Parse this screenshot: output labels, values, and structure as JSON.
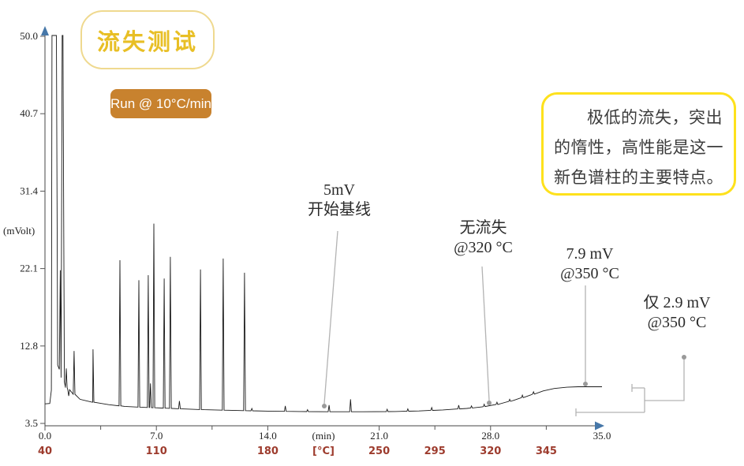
{
  "title": {
    "text": "流失测试"
  },
  "badge": {
    "text": "Run @ 10°C/min"
  },
  "info_box": {
    "text": "极低的流失，突出的惰性，高性能是这一新色谱柱的主要特点。"
  },
  "annotations": [
    {
      "id": "start-baseline",
      "line1": "5mV",
      "line2": "开始基线"
    },
    {
      "id": "no-bleed",
      "line1": "无流失",
      "line2": "@320 °C"
    },
    {
      "id": "bleed-7-9",
      "line1": "7.9 mV",
      "line2": "@350 °C"
    },
    {
      "id": "bleed-2-9",
      "line1": "仅 2.9 mV",
      "line2": "@350 °C"
    }
  ],
  "colors": {
    "title_yellow": "#e8bf25",
    "title_box_border": "#efd98f",
    "callout_border_yellow": "#fee11c",
    "badge_orange": "#c8822e",
    "temp_label_red": "#9d3b2d",
    "axis_arrow_blue": "#4677a8",
    "leader_gray": "#b3b3b3",
    "trace_black": "#1a1a1a"
  },
  "chart_data": {
    "type": "line",
    "subtype": "chromatogram",
    "ylabel": "(mVolt)",
    "xlabel_min": "(min)",
    "xlabel_temp": "[°C]",
    "xlim": [
      0,
      35
    ],
    "ylim": [
      3.5,
      50.0
    ],
    "grid": false,
    "y_ticks": [
      "3.5",
      "12.8",
      "22.1",
      "31.4",
      "40.7",
      "50.0"
    ],
    "x_major_ticks": [
      {
        "t": 0,
        "label": "0.0"
      },
      {
        "t": 7,
        "label": "7.0"
      },
      {
        "t": 14,
        "label": "14.0"
      },
      {
        "t": 21,
        "label": "21.0"
      },
      {
        "t": 28,
        "label": "28.0"
      },
      {
        "t": 35,
        "label": "35.0"
      }
    ],
    "x_minor_ticks": [
      3.5,
      10.5,
      24.5,
      31.5
    ],
    "temp_labels": [
      {
        "t": 0,
        "label": "40"
      },
      {
        "t": 7,
        "label": "110"
      },
      {
        "t": 14,
        "label": "180"
      },
      {
        "t": 17.5,
        "label": "[°C]"
      },
      {
        "t": 21,
        "label": "250"
      },
      {
        "t": 24.5,
        "label": "295"
      },
      {
        "t": 28,
        "label": "320"
      },
      {
        "t": 31.5,
        "label": "345"
      }
    ],
    "baseline": [
      [
        0,
        5.85
      ],
      [
        0.3,
        5.9
      ],
      [
        2.2,
        6.4
      ],
      [
        3.0,
        6.05
      ],
      [
        4.0,
        5.75
      ],
      [
        5.0,
        5.55
      ],
      [
        6.0,
        5.45
      ],
      [
        8.0,
        5.3
      ],
      [
        10.0,
        5.15
      ],
      [
        12.0,
        5.05
      ],
      [
        14.0,
        4.98
      ],
      [
        16.0,
        4.93
      ],
      [
        18.0,
        4.9
      ],
      [
        20.0,
        4.9
      ],
      [
        22.0,
        4.93
      ],
      [
        23.5,
        5.0
      ],
      [
        25.0,
        5.12
      ],
      [
        26.5,
        5.3
      ],
      [
        27.5,
        5.5
      ],
      [
        28.5,
        5.8
      ],
      [
        29.5,
        6.3
      ],
      [
        30.5,
        6.9
      ],
      [
        31.3,
        7.4
      ],
      [
        32.0,
        7.7
      ],
      [
        32.8,
        7.85
      ],
      [
        33.5,
        7.9
      ],
      [
        35.0,
        7.9
      ]
    ],
    "solvent_front": [
      [
        0.3,
        5.9
      ],
      [
        0.4,
        7.5
      ],
      [
        0.44,
        51
      ],
      [
        0.72,
        51
      ],
      [
        0.8,
        10.5
      ],
      [
        0.9,
        10.0
      ],
      [
        0.96,
        21.9
      ],
      [
        1.01,
        9.0
      ],
      [
        1.08,
        51
      ],
      [
        1.13,
        51
      ],
      [
        1.22,
        8.5
      ],
      [
        1.28,
        7.9
      ]
    ],
    "peaks": [
      [
        1.34,
        10.1
      ],
      [
        1.49,
        6.8
      ],
      [
        1.83,
        12.2
      ],
      [
        3.02,
        12.4
      ],
      [
        4.71,
        23.1
      ],
      [
        5.9,
        20.7
      ],
      [
        6.49,
        21.3
      ],
      [
        6.63,
        8.3
      ],
      [
        6.84,
        27.5
      ],
      [
        7.49,
        20.9
      ],
      [
        7.88,
        23.5
      ],
      [
        8.45,
        6.2
      ],
      [
        9.77,
        22.0
      ],
      [
        11.2,
        23.3
      ],
      [
        12.54,
        21.6
      ],
      [
        13.0,
        5.3
      ],
      [
        15.1,
        5.6
      ],
      [
        16.5,
        5.15
      ],
      [
        17.85,
        5.7
      ],
      [
        19.2,
        6.4
      ],
      [
        21.5,
        5.2
      ],
      [
        22.8,
        5.25
      ],
      [
        24.3,
        5.4
      ],
      [
        26.0,
        5.7
      ],
      [
        26.8,
        5.6
      ],
      [
        27.6,
        5.8
      ],
      [
        28.4,
        6.05
      ],
      [
        29.2,
        6.4
      ],
      [
        30.0,
        6.9
      ],
      [
        30.7,
        7.3
      ]
    ],
    "marked_points": [
      {
        "label": "5mV 开始基线",
        "t": 17.55,
        "mV": 5.4
      },
      {
        "label": "无流失 @320°C",
        "t": 27.9,
        "mV": 5.6
      },
      {
        "label": "7.9 mV @350°C",
        "t": 33.95,
        "mV": 8.2
      }
    ]
  }
}
